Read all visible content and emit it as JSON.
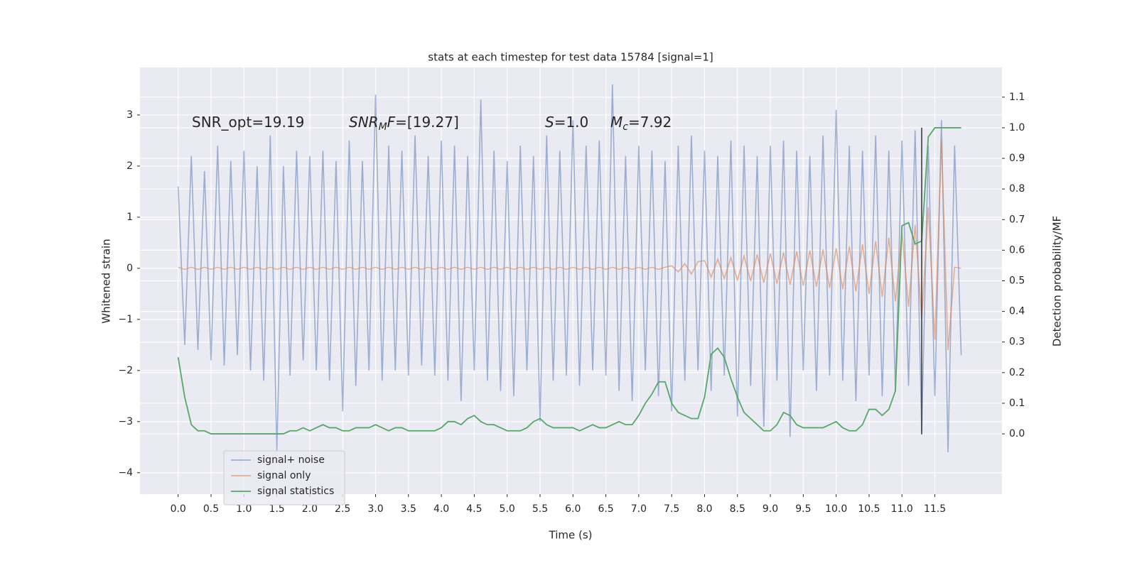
{
  "chart_data": {
    "type": "line",
    "title": "stats at each timestep for test data 15784 [signal=1]",
    "xlabel": "Time (s)",
    "ylabel": "Whitened strain",
    "y2label": "Detection probability/MF",
    "annotations": [
      [
        {
          "text": "SNR_opt=19.19"
        }
      ],
      [
        {
          "text": "SNR",
          "italic": true
        },
        {
          "text": "M",
          "italic": true,
          "sub": true
        },
        {
          "text": "F",
          "italic": true
        },
        {
          "text": "=[19.27]"
        }
      ],
      [
        {
          "text": "S",
          "italic": true
        },
        {
          "text": "=1.0"
        }
      ],
      [
        {
          "text": "M",
          "italic": true
        },
        {
          "text": "c",
          "italic": true,
          "sub": true
        },
        {
          "text": "=7.92"
        }
      ]
    ],
    "x": [
      0.0,
      0.1,
      0.2,
      0.3,
      0.4,
      0.5,
      0.6,
      0.7,
      0.8,
      0.9,
      1.0,
      1.1,
      1.2,
      1.3,
      1.4,
      1.5,
      1.6,
      1.7,
      1.8,
      1.9,
      2.0,
      2.1,
      2.2,
      2.3,
      2.4,
      2.5,
      2.6,
      2.7,
      2.8,
      2.9,
      3.0,
      3.1,
      3.2,
      3.3,
      3.4,
      3.5,
      3.6,
      3.7,
      3.8,
      3.9,
      4.0,
      4.1,
      4.2,
      4.3,
      4.4,
      4.5,
      4.6,
      4.7,
      4.8,
      4.9,
      5.0,
      5.1,
      5.2,
      5.3,
      5.4,
      5.5,
      5.6,
      5.7,
      5.8,
      5.9,
      6.0,
      6.1,
      6.2,
      6.3,
      6.4,
      6.5,
      6.6,
      6.7,
      6.8,
      6.9,
      7.0,
      7.1,
      7.2,
      7.3,
      7.4,
      7.5,
      7.6,
      7.7,
      7.8,
      7.9,
      8.0,
      8.1,
      8.2,
      8.3,
      8.4,
      8.5,
      8.6,
      8.7,
      8.8,
      8.9,
      9.0,
      9.1,
      9.2,
      9.3,
      9.4,
      9.5,
      9.6,
      9.7,
      9.8,
      9.9,
      10.0,
      10.1,
      10.2,
      10.3,
      10.4,
      10.5,
      10.6,
      10.7,
      10.8,
      10.9,
      11.0,
      11.1,
      11.2,
      11.3,
      11.4,
      11.5,
      11.6,
      11.7,
      11.8,
      11.9
    ],
    "series": [
      {
        "name": "signal+ noise",
        "color": "#4c72b0",
        "opacity": 0.5,
        "axis": "y",
        "values": [
          1.6,
          -1.5,
          2.2,
          -1.6,
          1.9,
          -1.8,
          2.4,
          -1.9,
          2.1,
          -1.7,
          2.3,
          -2.0,
          2.0,
          -2.2,
          2.6,
          -3.6,
          2.0,
          -2.1,
          2.3,
          -1.8,
          2.2,
          -2.0,
          2.3,
          -2.2,
          2.1,
          -2.8,
          2.5,
          -2.3,
          2.1,
          -2.0,
          3.4,
          -2.2,
          2.4,
          -2.0,
          2.3,
          -2.1,
          2.6,
          -1.9,
          2.2,
          -2.1,
          2.5,
          -2.2,
          2.4,
          -2.6,
          2.2,
          -2.0,
          3.3,
          -2.2,
          2.3,
          -2.4,
          2.1,
          -2.5,
          2.4,
          -2.0,
          2.2,
          -3.0,
          2.6,
          -2.2,
          2.3,
          -2.1,
          2.9,
          -2.3,
          2.4,
          -2.0,
          2.5,
          -2.1,
          3.6,
          -2.4,
          2.2,
          -2.6,
          2.4,
          -2.0,
          2.3,
          -2.5,
          2.1,
          -2.8,
          2.4,
          -2.2,
          2.6,
          -2.0,
          2.3,
          -2.4,
          2.2,
          -2.1,
          2.5,
          -2.9,
          2.4,
          -2.3,
          2.2,
          -3.1,
          2.4,
          -2.2,
          2.5,
          -3.3,
          2.3,
          -2.0,
          2.2,
          -2.4,
          2.6,
          -2.1,
          3.1,
          -2.2,
          2.4,
          -2.6,
          2.3,
          -2.1,
          2.6,
          -2.5,
          2.3,
          -2.4,
          2.5,
          -2.3,
          2.7,
          -3.2,
          2.4,
          -2.5,
          2.9,
          -3.6,
          2.4,
          -1.7
        ]
      },
      {
        "name": "signal only",
        "color": "#dd8452",
        "opacity": 0.6,
        "axis": "y",
        "values": [
          0.02,
          -0.02,
          0.02,
          -0.02,
          0.02,
          -0.02,
          0.02,
          -0.02,
          0.02,
          -0.02,
          0.02,
          -0.02,
          0.02,
          -0.02,
          0.02,
          -0.02,
          0.02,
          -0.02,
          0.02,
          -0.02,
          0.02,
          -0.02,
          0.02,
          -0.02,
          0.02,
          -0.02,
          0.02,
          -0.02,
          0.02,
          -0.02,
          0.02,
          -0.02,
          0.02,
          -0.02,
          0.02,
          -0.02,
          0.02,
          -0.02,
          0.02,
          -0.02,
          0.02,
          -0.02,
          0.02,
          -0.02,
          0.02,
          -0.02,
          0.02,
          -0.02,
          0.02,
          -0.02,
          0.02,
          -0.02,
          0.02,
          -0.02,
          0.02,
          -0.02,
          0.02,
          -0.02,
          0.02,
          -0.02,
          0.02,
          -0.02,
          0.02,
          -0.02,
          0.02,
          -0.02,
          0.02,
          -0.02,
          0.02,
          -0.02,
          0.02,
          -0.02,
          0.02,
          -0.02,
          0.02,
          0.05,
          -0.07,
          0.09,
          -0.11,
          0.13,
          0.15,
          -0.17,
          0.18,
          -0.2,
          0.21,
          -0.23,
          0.24,
          -0.25,
          0.27,
          -0.28,
          0.29,
          -0.3,
          0.31,
          -0.32,
          0.33,
          -0.34,
          0.35,
          -0.36,
          0.37,
          -0.38,
          0.39,
          -0.41,
          0.43,
          -0.45,
          0.47,
          -0.5,
          0.53,
          -0.56,
          0.6,
          -0.65,
          0.7,
          -0.75,
          0.85,
          -1.0,
          1.2,
          -1.4,
          2.5,
          -1.6,
          0.02,
          0.0
        ]
      },
      {
        "name": "signal statistics",
        "color": "#55a868",
        "opacity": 1,
        "axis": "y2",
        "values": [
          0.25,
          0.12,
          0.03,
          0.01,
          0.01,
          0.0,
          0.0,
          0.0,
          0.0,
          0.0,
          0.0,
          0.0,
          0.0,
          0.0,
          0.0,
          0.0,
          0.0,
          0.01,
          0.01,
          0.02,
          0.01,
          0.02,
          0.03,
          0.02,
          0.02,
          0.01,
          0.01,
          0.02,
          0.02,
          0.02,
          0.03,
          0.02,
          0.01,
          0.02,
          0.02,
          0.01,
          0.01,
          0.01,
          0.01,
          0.01,
          0.02,
          0.04,
          0.04,
          0.03,
          0.05,
          0.06,
          0.04,
          0.03,
          0.03,
          0.02,
          0.01,
          0.01,
          0.01,
          0.02,
          0.04,
          0.05,
          0.03,
          0.02,
          0.02,
          0.02,
          0.02,
          0.01,
          0.02,
          0.03,
          0.02,
          0.02,
          0.03,
          0.04,
          0.03,
          0.03,
          0.06,
          0.1,
          0.13,
          0.17,
          0.17,
          0.1,
          0.07,
          0.06,
          0.05,
          0.05,
          0.12,
          0.26,
          0.28,
          0.25,
          0.18,
          0.12,
          0.07,
          0.05,
          0.03,
          0.01,
          0.01,
          0.03,
          0.07,
          0.06,
          0.03,
          0.02,
          0.02,
          0.02,
          0.02,
          0.03,
          0.04,
          0.02,
          0.01,
          0.01,
          0.03,
          0.08,
          0.08,
          0.06,
          0.08,
          0.14,
          0.68,
          0.69,
          0.62,
          0.63,
          0.97,
          1.0,
          1.0,
          1.0,
          1.0,
          1.0
        ]
      }
    ],
    "vline": {
      "x": 11.3,
      "ymin": -3.25,
      "ymax": 2.75,
      "color": "#333333"
    },
    "xlim": [
      -0.58,
      12.52
    ],
    "ylim": [
      -4.42,
      3.93
    ],
    "y2lim": [
      -0.197,
      1.197
    ],
    "xticks": [
      {
        "value": 0,
        "label": "0.0"
      },
      0.5,
      {
        "value": 1,
        "label": "1.0"
      },
      1.5,
      {
        "value": 2,
        "label": "2.0"
      },
      2.5,
      {
        "value": 3,
        "label": "3.0"
      },
      3.5,
      {
        "value": 4,
        "label": "4.0"
      },
      4.5,
      {
        "value": 5,
        "label": "5.0"
      },
      5.5,
      {
        "value": 6,
        "label": "6.0"
      },
      6.5,
      {
        "value": 7,
        "label": "7.0"
      },
      7.5,
      {
        "value": 8,
        "label": "8.0"
      },
      8.5,
      {
        "value": 9,
        "label": "9.0"
      },
      9.5,
      {
        "value": 10,
        "label": "10.0"
      },
      10.5,
      {
        "value": 11,
        "label": "11.0"
      },
      11.5
    ],
    "yticks": [
      {
        "value": -4,
        "label": "−4"
      },
      {
        "value": -3,
        "label": "−3"
      },
      {
        "value": -2,
        "label": "−2"
      },
      {
        "value": -1,
        "label": "−1"
      },
      0,
      1,
      2,
      3
    ],
    "y2ticks": [
      {
        "value": 0,
        "label": "0.0"
      },
      0.1,
      0.2,
      0.3,
      0.4,
      0.5,
      0.6,
      0.7,
      0.8,
      0.9,
      {
        "value": 1,
        "label": "1.0"
      },
      1.1
    ],
    "grid": true,
    "legend": "lower left"
  }
}
